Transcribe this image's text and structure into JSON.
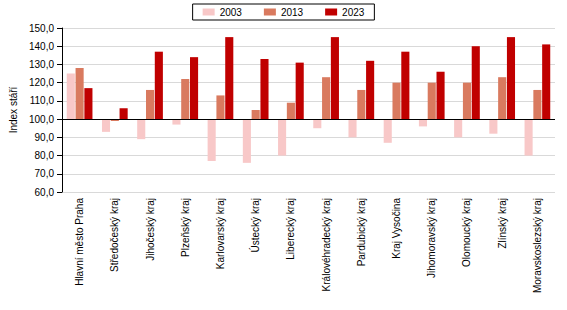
{
  "chart_data": {
    "type": "bar",
    "y_label": "Index stáří",
    "categories": [
      "Hlavní město Praha",
      "Středočeský kraj",
      "Jihočeský kraj",
      "Plzeňský kraj",
      "Karlovarský kraj",
      "Ústecký kraj",
      "Liberecký kraj",
      "Královéhradecký kraj",
      "Pardubický kraj",
      "Kraj Vysočina",
      "Jihomoravský kraj",
      "Olomoucký kraj",
      "Zlínský kraj",
      "Moravskoslezský kraj"
    ],
    "baseline": 100,
    "series": [
      {
        "name": "2003",
        "color": "#f8c8c8",
        "values": [
          125,
          93,
          89,
          97,
          77,
          76,
          80,
          95,
          90,
          87,
          96,
          90,
          92,
          80
        ]
      },
      {
        "name": "2013",
        "color": "#d97a5f",
        "values": [
          128,
          99,
          116,
          122,
          113,
          105,
          109,
          123,
          116,
          120,
          120,
          120,
          123,
          116
        ]
      },
      {
        "name": "2023",
        "color": "#c00000",
        "values": [
          117,
          106,
          137,
          134,
          145,
          133,
          131,
          145,
          132,
          137,
          126,
          140,
          145,
          141
        ]
      }
    ],
    "ylim": [
      60,
      150
    ],
    "yticks": [
      {
        "value": 60,
        "label": "60,0"
      },
      {
        "value": 70,
        "label": "70,0"
      },
      {
        "value": 80,
        "label": "80,0"
      },
      {
        "value": 90,
        "label": "90,0"
      },
      {
        "value": 100,
        "label": "100,0"
      },
      {
        "value": 110,
        "label": "110,0"
      },
      {
        "value": 120,
        "label": "120,0"
      },
      {
        "value": 130,
        "label": "130,0"
      },
      {
        "value": 140,
        "label": "140,0"
      },
      {
        "value": 150,
        "label": "150,0"
      }
    ],
    "grid": true,
    "legend": "top"
  }
}
